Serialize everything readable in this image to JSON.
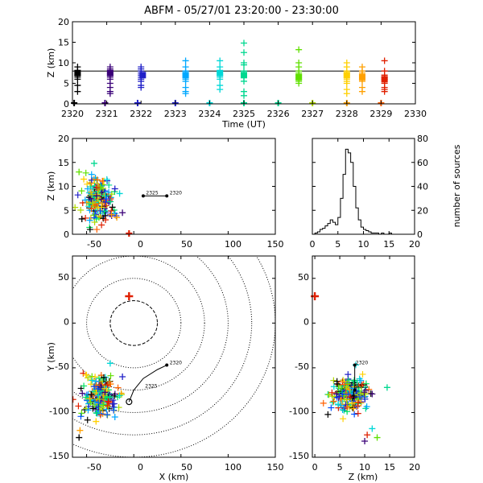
{
  "title": "ABFM - 05/27/01 23:20:00 - 23:30:00",
  "colors": {
    "axis": "#000000",
    "palette": [
      "#000000",
      "#3a0078",
      "#2020c8",
      "#0050ff",
      "#00a8ff",
      "#00d8d8",
      "#00d890",
      "#00e060",
      "#60e000",
      "#b0d800",
      "#ffd000",
      "#ffa000",
      "#ff6000",
      "#e02000"
    ]
  },
  "chart_data": [
    {
      "id": "time_height",
      "type": "scatter",
      "xlabel": "Time (UT)",
      "ylabel": "Z (km)",
      "xlim": [
        2320,
        2330
      ],
      "ylim": [
        0,
        20
      ],
      "xticks": [
        "2320",
        "2321",
        "2322",
        "2323",
        "2324",
        "2325",
        "2326",
        "2327",
        "2328",
        "2329",
        "2330"
      ],
      "yticks": [
        "0",
        "5",
        "10",
        "15",
        "20"
      ],
      "reference_line_z": 8,
      "sources": [
        {
          "t": 2320.15,
          "z": [
            8,
            7.5,
            7,
            6.5,
            6,
            7,
            8,
            9,
            4.5,
            3
          ],
          "color": "#000000"
        },
        {
          "t": 2321.1,
          "z": [
            9,
            8,
            7.5,
            7,
            6.5,
            6,
            5,
            8.5,
            4,
            3,
            2.5
          ],
          "color": "#3a0078"
        },
        {
          "t": 2322,
          "z": [
            8.5,
            8,
            7.5,
            7,
            6.5,
            6,
            5.5,
            9,
            4.5,
            4
          ],
          "color": "#2020c8"
        },
        {
          "t": 2323.3,
          "z": [
            10.5,
            9,
            8,
            7.5,
            7,
            6.5,
            6,
            5.5,
            4,
            3,
            2.5
          ],
          "color": "#00a8ff"
        },
        {
          "t": 2324.3,
          "z": [
            10.5,
            9,
            8,
            7.5,
            7,
            6.5,
            6,
            4.5,
            3.5
          ],
          "color": "#00d8d8"
        },
        {
          "t": 2325,
          "z": [
            14.8,
            12.5,
            10,
            9.5,
            8,
            7,
            6.5,
            5.5,
            3,
            2
          ],
          "color": "#00d890"
        },
        {
          "t": 2326.6,
          "z": [
            13.2,
            10,
            9,
            8,
            7.5,
            7,
            6.5,
            6,
            5.5,
            5
          ],
          "color": "#60e000"
        },
        {
          "t": 2328,
          "z": [
            10,
            9,
            8,
            7.5,
            7,
            6.5,
            6,
            5.5,
            5,
            3.5,
            2.5
          ],
          "color": "#ffd000"
        },
        {
          "t": 2328.45,
          "z": [
            8,
            7.5,
            7,
            6.5,
            6,
            5.5,
            9,
            4,
            3
          ],
          "color": "#ffa000"
        },
        {
          "t": 2329.1,
          "z": [
            10.5,
            8,
            7,
            6.5,
            6,
            5,
            4,
            3.5,
            3
          ],
          "color": "#e02000"
        }
      ],
      "ground_markers": [
        {
          "t": 2320.05,
          "color": "#000000"
        },
        {
          "t": 2320.95,
          "color": "#3a0078"
        },
        {
          "t": 2321.9,
          "color": "#2020c8"
        },
        {
          "t": 2323,
          "color": "#2020c8"
        },
        {
          "t": 2324,
          "color": "#00d8d8"
        },
        {
          "t": 2325,
          "color": "#00d890"
        },
        {
          "t": 2326,
          "color": "#00d890"
        },
        {
          "t": 2327,
          "color": "#b0d800"
        },
        {
          "t": 2328,
          "color": "#ffa000"
        },
        {
          "t": 2329,
          "color": "#ff6000"
        }
      ],
      "bold_markers": [
        {
          "t": 2320.15,
          "z": 7.5,
          "color": "#000000"
        },
        {
          "t": 2321.1,
          "z": 7.5,
          "color": "#3a0078"
        },
        {
          "t": 2322.05,
          "z": 7,
          "color": "#2020c8"
        },
        {
          "t": 2323.3,
          "z": 7,
          "color": "#00a8ff"
        },
        {
          "t": 2324.3,
          "z": 7.5,
          "color": "#00d8d8"
        },
        {
          "t": 2325,
          "z": 7,
          "color": "#00d890"
        },
        {
          "t": 2326.6,
          "z": 6.5,
          "color": "#60e000"
        },
        {
          "t": 2328,
          "z": 7,
          "color": "#ffd000"
        },
        {
          "t": 2328.45,
          "z": 6.5,
          "color": "#ffa000"
        },
        {
          "t": 2329.1,
          "z": 6,
          "color": "#e02000"
        }
      ]
    },
    {
      "id": "x_height",
      "type": "scatter",
      "xlabel": "",
      "ylabel": "Z (km)",
      "xlim": [
        -65,
        150
      ],
      "ylim": [
        0,
        20
      ],
      "xticks": [
        "-50",
        "0",
        "50",
        "100",
        "150"
      ],
      "yticks": [
        "0",
        "5",
        "10",
        "15",
        "20"
      ],
      "cluster": {
        "center_x": -38,
        "center_z": 7,
        "spread_x": 8,
        "spread_z": 2.2,
        "count": 200
      },
      "outliers": [
        {
          "x": -58,
          "z": 13,
          "color": "#60e000"
        },
        {
          "x": -42,
          "z": 14.8,
          "color": "#00d890"
        },
        {
          "x": -53,
          "z": 11.5,
          "color": "#ffd000"
        },
        {
          "x": -20,
          "z": 9.5,
          "color": "#2020c8"
        },
        {
          "x": -15,
          "z": 8.5,
          "color": "#00d8d8"
        },
        {
          "x": -18,
          "z": 3.5,
          "color": "#ffa000"
        },
        {
          "x": -12,
          "z": 4.5,
          "color": "#3a0078"
        },
        {
          "x": -55,
          "z": 3.2,
          "color": "#000000"
        },
        {
          "x": -30,
          "z": 3,
          "color": "#e02000"
        }
      ],
      "ground_markers": [
        {
          "x": -5,
          "z": 0,
          "color": "#e02000"
        }
      ],
      "track": [
        {
          "x": 35,
          "z": 8
        },
        {
          "x": 10,
          "z": 8
        }
      ],
      "track_labels": [
        {
          "x": 38,
          "z": 8.3,
          "text": "2320"
        },
        {
          "x": 13,
          "z": 8.3,
          "text": "2325"
        }
      ]
    },
    {
      "id": "height_histogram",
      "type": "bar",
      "xlabel": "",
      "ylabel": "number of sources",
      "xlim": [
        0,
        20
      ],
      "ylim": [
        0,
        80
      ],
      "xticks": [
        "0",
        "5",
        "10",
        "15",
        "20"
      ],
      "yticks": [
        "0",
        "20",
        "40",
        "60",
        "80"
      ],
      "bin_edges": [
        0,
        0.5,
        1,
        1.5,
        2,
        2.5,
        3,
        3.5,
        4,
        4.5,
        5,
        5.5,
        6,
        6.5,
        7,
        7.5,
        8,
        8.5,
        9,
        9.5,
        10,
        10.5,
        11,
        11.5,
        12,
        12.5,
        13,
        13.5,
        14,
        14.5,
        15,
        15.5,
        16,
        16.5,
        17,
        17.5,
        18,
        18.5,
        19,
        19.5,
        20
      ],
      "counts": [
        0,
        1,
        2,
        4,
        5,
        7,
        9,
        12,
        10,
        8,
        14,
        30,
        50,
        71,
        68,
        60,
        40,
        22,
        12,
        6,
        4,
        3,
        2,
        1,
        1,
        1,
        0,
        1,
        0,
        0,
        1,
        0,
        0,
        0,
        0,
        0,
        0,
        0,
        0,
        0
      ]
    },
    {
      "id": "plan_view",
      "type": "scatter",
      "xlabel": "X (km)",
      "ylabel": "Y (km)",
      "xlim": [
        -65,
        150
      ],
      "ylim": [
        -150,
        75
      ],
      "xticks": [
        "-50",
        "0",
        "50",
        "100",
        "150"
      ],
      "yticks": [
        "-150",
        "-100",
        "-50",
        "0",
        "50"
      ],
      "range_rings_km": [
        25,
        50,
        75,
        100,
        125,
        150
      ],
      "cluster": {
        "center_x": -37,
        "center_y": -80,
        "spread_x": 9,
        "spread_y": 11,
        "count": 200
      },
      "outliers": [
        {
          "x": -58,
          "y": -128,
          "color": "#000000"
        },
        {
          "x": -57,
          "y": -120,
          "color": "#ffa000"
        },
        {
          "x": -25,
          "y": -45,
          "color": "#00d8d8"
        },
        {
          "x": -12,
          "y": -60,
          "color": "#2020c8"
        },
        {
          "x": -40,
          "y": -110,
          "color": "#ffd000"
        },
        {
          "x": -20,
          "y": -105,
          "color": "#00a8ff"
        }
      ],
      "station": {
        "x": -5,
        "y": 30,
        "color": "#e02000"
      },
      "track": [
        {
          "x": 35,
          "y": -47
        },
        {
          "x": 25,
          "y": -52
        },
        {
          "x": 10,
          "y": -62
        },
        {
          "x": 0,
          "y": -75
        },
        {
          "x": -5,
          "y": -88
        }
      ],
      "track_labels": [
        {
          "x": 38,
          "y": -46,
          "text": "2320"
        },
        {
          "x": 12,
          "y": -72,
          "text": "2325"
        }
      ]
    },
    {
      "id": "height_y",
      "type": "scatter",
      "xlabel": "Z (km)",
      "ylabel": "",
      "xlim": [
        -0.5,
        20
      ],
      "ylim": [
        -150,
        75
      ],
      "xticks": [
        "0",
        "5",
        "10",
        "15",
        "20"
      ],
      "yticks": [
        "-150",
        "-100",
        "-50",
        "0",
        "50"
      ],
      "cluster": {
        "center_z": 7,
        "center_y": -80,
        "spread_z": 1.8,
        "spread_y": 10,
        "count": 200
      },
      "outliers": [
        {
          "z": 14.5,
          "y": -72,
          "color": "#00d890"
        },
        {
          "z": 11.5,
          "y": -118,
          "color": "#00d8d8"
        },
        {
          "z": 12.5,
          "y": -128,
          "color": "#60e000"
        },
        {
          "z": 10,
          "y": -132,
          "color": "#3a0078"
        },
        {
          "z": 10.5,
          "y": -125,
          "color": "#e02000"
        },
        {
          "z": 4.5,
          "y": -68,
          "color": "#000000"
        }
      ],
      "ground_markers": [
        {
          "z": 0,
          "y": 30,
          "color": "#e02000"
        }
      ],
      "track": [
        {
          "z": 8,
          "y": -47
        },
        {
          "z": 8,
          "y": -75
        }
      ],
      "track_labels": [
        {
          "z": 8.2,
          "y": -46,
          "text": "2320"
        },
        {
          "z": 8.2,
          "y": -72,
          "text": "2325"
        }
      ]
    }
  ]
}
